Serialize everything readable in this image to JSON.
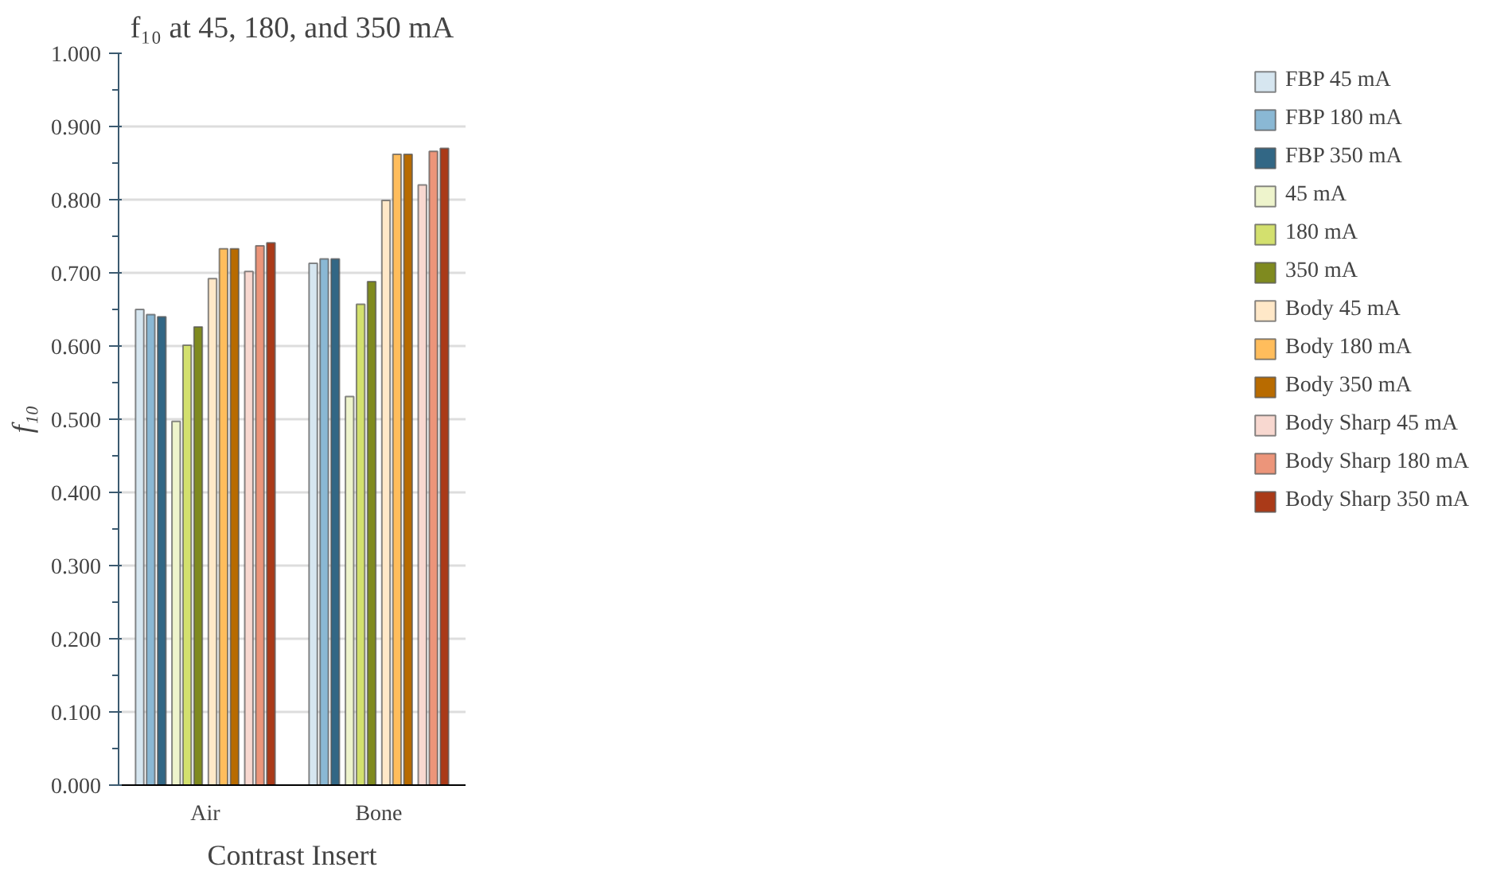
{
  "chart_data": {
    "type": "bar",
    "title": "f₁₀ at 45, 180, and 350 mA",
    "xlabel": "Contrast Insert",
    "ylabel": "f₁₀",
    "categories": [
      "Air",
      "Bone"
    ],
    "series": [
      {
        "name": "FBP 45 mA",
        "color": "#d6e6f0",
        "values": [
          0.65,
          0.713
        ]
      },
      {
        "name": "FBP 180 mA",
        "color": "#8ab8d4",
        "values": [
          0.643,
          0.719
        ]
      },
      {
        "name": "FBP 350 mA",
        "color": "#326785",
        "values": [
          0.64,
          0.719
        ]
      },
      {
        "name": "45 mA",
        "color": "#eef4cc",
        "values": [
          0.497,
          0.531
        ]
      },
      {
        "name": "180 mA",
        "color": "#d3e06e",
        "values": [
          0.601,
          0.657
        ]
      },
      {
        "name": "350 mA",
        "color": "#7f8a1f",
        "values": [
          0.626,
          0.688
        ]
      },
      {
        "name": "Body 45 mA",
        "color": "#ffe8c8",
        "values": [
          0.692,
          0.799
        ]
      },
      {
        "name": "Body 180 mA",
        "color": "#ffbd5c",
        "values": [
          0.733,
          0.862
        ]
      },
      {
        "name": "Body 350 mA",
        "color": "#b86b00",
        "values": [
          0.733,
          0.862
        ]
      },
      {
        "name": "Body Sharp 45 mA",
        "color": "#f8d8d0",
        "values": [
          0.702,
          0.82
        ]
      },
      {
        "name": "Body Sharp 180 mA",
        "color": "#ec957a",
        "values": [
          0.737,
          0.866
        ]
      },
      {
        "name": "Body Sharp 350 mA",
        "color": "#aa3a18",
        "values": [
          0.741,
          0.87
        ]
      }
    ],
    "ylim": [
      0,
      1
    ],
    "yticks": [
      {
        "value": 0,
        "label": "0.000"
      },
      {
        "value": 0.05,
        "label": null
      },
      {
        "value": 0.1,
        "label": "0.100"
      },
      {
        "value": 0.15,
        "label": null
      },
      {
        "value": 0.2,
        "label": "0.200"
      },
      {
        "value": 0.25,
        "label": null
      },
      {
        "value": 0.3,
        "label": "0.300"
      },
      {
        "value": 0.35,
        "label": null
      },
      {
        "value": 0.4,
        "label": "0.400"
      },
      {
        "value": 0.45,
        "label": null
      },
      {
        "value": 0.5,
        "label": "0.500"
      },
      {
        "value": 0.55,
        "label": null
      },
      {
        "value": 0.6,
        "label": "0.600"
      },
      {
        "value": 0.65,
        "label": null
      },
      {
        "value": 0.7,
        "label": "0.700"
      },
      {
        "value": 0.75,
        "label": null
      },
      {
        "value": 0.8,
        "label": "0.800"
      },
      {
        "value": 0.85,
        "label": null
      },
      {
        "value": 0.9,
        "label": "0.900"
      },
      {
        "value": 0.95,
        "label": null
      },
      {
        "value": 1,
        "label": "1.000"
      }
    ],
    "grid": "y",
    "legend": "right"
  }
}
